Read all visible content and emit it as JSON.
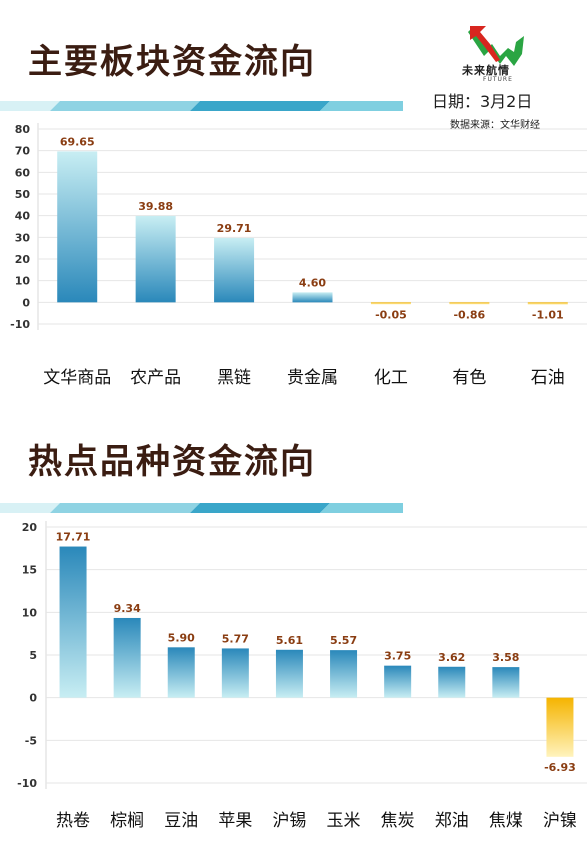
{
  "header": {
    "logo_text": "未来航情",
    "logo_sub": "FUTURE",
    "date": "日期：3月2日",
    "source": "数据来源：文华财经"
  },
  "icons": {
    "logo": "rising-arrow-logo-icon"
  },
  "colors": {
    "title": "#3b1d12",
    "positive_dark": "#2a88ba",
    "positive_light": "#c8eef3",
    "negative_dark": "#f5b400",
    "negative_light": "#fff3bd",
    "value_label": "#8a3d12",
    "stripe_dark": "#3aa6c9",
    "stripe_light": "#bfeaf0"
  },
  "chart_data": [
    {
      "type": "bar",
      "title": "主要板块资金流向",
      "categories": [
        "文华商品",
        "农产品",
        "黑链",
        "贵金属",
        "化工",
        "有色",
        "石油"
      ],
      "values": [
        69.65,
        39.88,
        29.71,
        4.6,
        -0.05,
        -0.86,
        -1.01
      ],
      "value_labels": [
        "69.65",
        "39.88",
        "29.71",
        "4.60",
        "-0.05",
        "-0.86",
        "-1.01"
      ],
      "yticks": [
        80,
        70,
        60,
        50,
        40,
        30,
        20,
        10,
        0,
        -10
      ],
      "ylim": [
        -10,
        80
      ],
      "xlabel": "",
      "ylabel": "",
      "grid": true
    },
    {
      "type": "bar",
      "title": "热点品种资金流向",
      "categories": [
        "热卷",
        "棕榈",
        "豆油",
        "苹果",
        "沪锡",
        "玉米",
        "焦炭",
        "郑油",
        "焦煤",
        "沪镍"
      ],
      "values": [
        17.71,
        9.34,
        5.9,
        5.77,
        5.61,
        5.57,
        3.75,
        3.62,
        3.58,
        -6.93
      ],
      "value_labels": [
        "17.71",
        "9.34",
        "5.90",
        "5.77",
        "5.61",
        "5.57",
        "3.75",
        "3.62",
        "3.58",
        "-6.93"
      ],
      "yticks": [
        20,
        15,
        10,
        5,
        0,
        -5,
        -10
      ],
      "ylim": [
        -10,
        20
      ],
      "xlabel": "",
      "ylabel": "",
      "grid": true
    }
  ]
}
